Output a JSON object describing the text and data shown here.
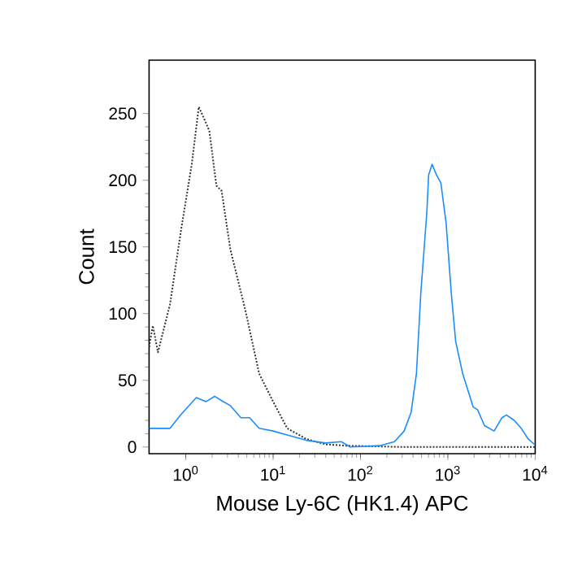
{
  "chart_data": {
    "type": "line",
    "xlabel": "Mouse Ly-6C (HK1.4) APC",
    "ylabel": "Count",
    "log": "x",
    "xlim": [
      0.38,
      10000
    ],
    "ylim": [
      -5,
      290
    ],
    "xticks": [
      {
        "value": 1,
        "label": "10$^{0}$"
      },
      {
        "value": 10,
        "label": "10$^{1}$"
      },
      {
        "value": 100,
        "label": "10$^{2}$"
      },
      {
        "value": 1000,
        "label": "10$^{3}$"
      },
      {
        "value": 10000,
        "label": "10$^{4}$"
      }
    ],
    "yticks": [
      0,
      50,
      100,
      150,
      200,
      250
    ],
    "marker": "none",
    "series": [
      {
        "color": "#333333",
        "line_style": "dotted",
        "x": [
          0.38,
          0.42,
          0.48,
          0.66,
          0.87,
          1.17,
          1.41,
          1.7,
          1.86,
          2.24,
          2.57,
          3.24,
          4.79,
          6.92,
          10,
          14.5,
          24,
          40,
          68,
          316,
          3162,
          10000
        ],
        "values": [
          75,
          91,
          71,
          107,
          160,
          212,
          255,
          243,
          237,
          196,
          192,
          148,
          103,
          55,
          34,
          14,
          6,
          2,
          1,
          0,
          0,
          0
        ]
      },
      {
        "color": "#1a8cff",
        "line_style": "solid",
        "x": [
          0.38,
          0.66,
          0.87,
          1.32,
          1.7,
          2.14,
          2.69,
          3.24,
          4.27,
          5.37,
          6.92,
          10,
          14.5,
          24,
          40,
          60,
          68,
          76,
          166,
          245,
          316,
          380,
          437,
          490,
          575,
          603,
          661,
          741,
          832,
          955,
          1096,
          1230,
          1479,
          1950,
          2188,
          2630,
          3388,
          4169,
          4677,
          5754,
          6918,
          8318,
          9772
        ],
        "values": [
          14,
          14,
          24,
          37,
          34,
          38,
          34,
          31,
          22,
          22,
          14,
          12,
          9,
          5,
          3,
          4,
          2,
          0,
          1,
          4,
          12,
          26,
          55,
          115,
          176,
          204,
          212,
          204,
          198,
          168,
          115,
          79,
          55,
          30,
          28,
          16,
          12,
          22,
          24,
          20,
          14,
          6,
          2
        ]
      }
    ]
  }
}
